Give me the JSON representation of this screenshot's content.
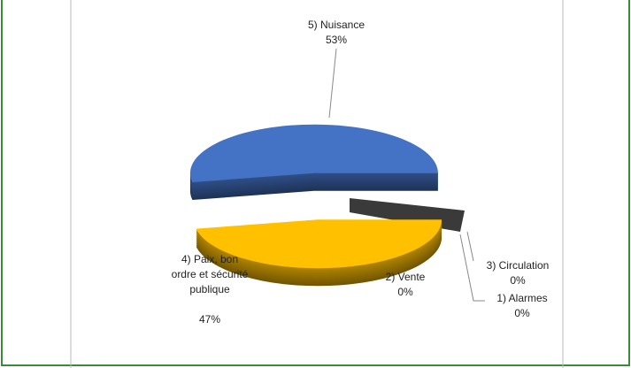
{
  "chart_data": {
    "type": "pie",
    "categories": [
      "5) Nuisance",
      "4) Paix, bon ordre et sécurité publique",
      "2) Vente",
      "3) Circulation",
      "1) Alarmes"
    ],
    "values": [
      53,
      47,
      0,
      0,
      0
    ],
    "value_labels": [
      "53%",
      "47%",
      "0%",
      "0%",
      "0%"
    ],
    "colors": [
      "#4472c4",
      "#ffc000",
      "#a5a5a5",
      "#595959",
      "#ed7d31"
    ]
  }
}
